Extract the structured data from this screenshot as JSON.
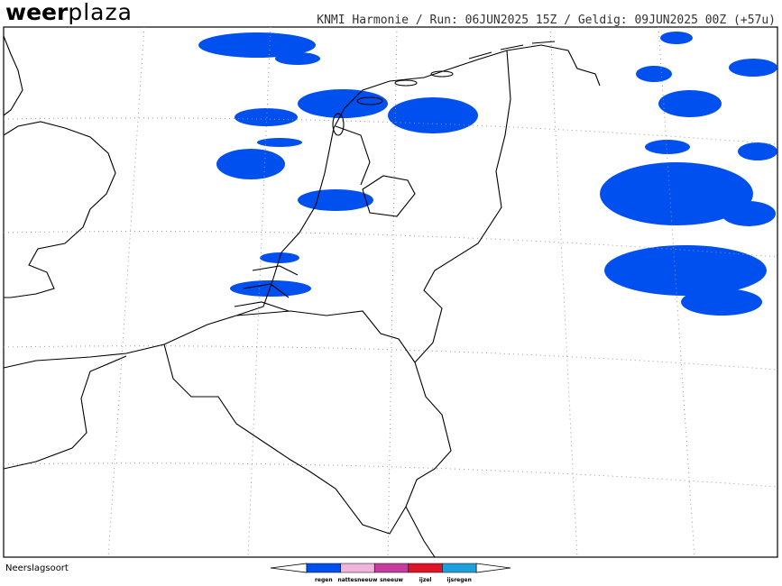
{
  "logo": {
    "bold": "weer",
    "light": "plaza"
  },
  "header": "KNMI Harmonie / Run: 06JUN2025 15Z / Geldig: 09JUN2025 00Z (+57u)",
  "legend": {
    "title": "Neerslagsoort",
    "items": [
      {
        "label": "regen",
        "color": "#0050f0"
      },
      {
        "label": "nattesneeuw",
        "color": "#f0b4dc"
      },
      {
        "label": "sneeuw",
        "color": "#c83ca0"
      },
      {
        "label": "ijzel",
        "color": "#e01428"
      },
      {
        "label": "ijsregen",
        "color": "#1ea0dc"
      }
    ]
  }
}
